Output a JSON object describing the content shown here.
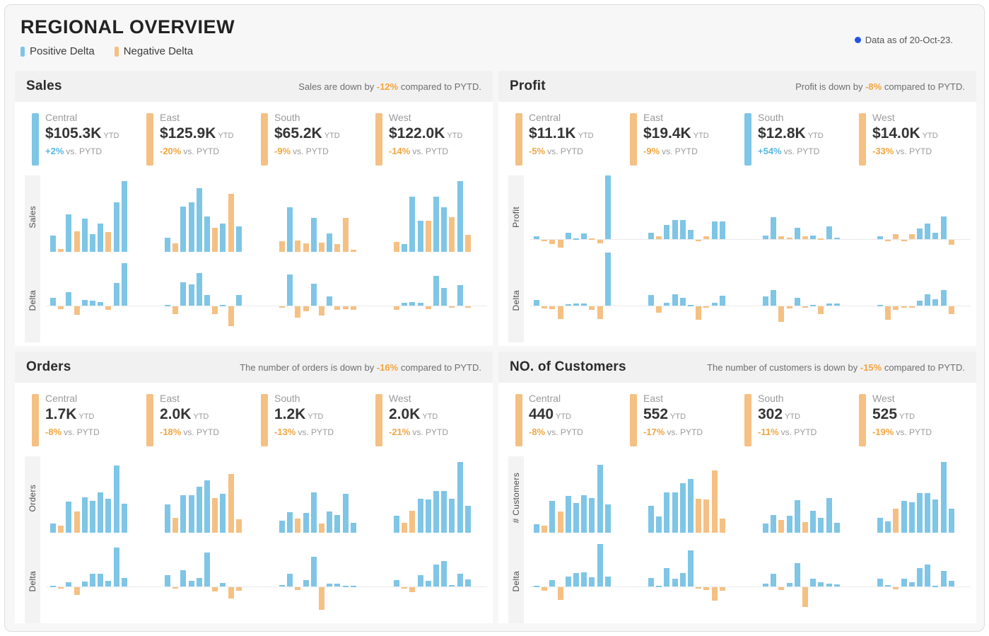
{
  "header": {
    "title": "REGIONAL OVERVIEW",
    "legend": [
      {
        "label": "Positive Delta",
        "color": "#7EC5E6"
      },
      {
        "label": "Negative Delta",
        "color": "#F5C083"
      }
    ],
    "as_of": "Data as of 20-Oct-23."
  },
  "colors": {
    "positive_bar": "#7EC5E6",
    "negative_bar": "#F5C083",
    "positive_text": "#58B7E4",
    "negative_text": "#F2A53F",
    "as_of_dot": "#2452E8"
  },
  "panels": [
    {
      "id": "sales",
      "title": "Sales",
      "subtitle": {
        "prefix": "Sales are down by ",
        "highlight": "-12%",
        "suffix": " compared to PYTD."
      },
      "value_axis_label": "Sales",
      "delta_axis_label": "Delta",
      "kpis": [
        {
          "region": "Central",
          "value": "$105.3K",
          "ytd_label": "YTD",
          "delta": "+2%",
          "delta_positive": true,
          "vs_label": "vs. PYTD"
        },
        {
          "region": "East",
          "value": "$125.9K",
          "ytd_label": "YTD",
          "delta": "-20%",
          "delta_positive": false,
          "vs_label": "vs. PYTD"
        },
        {
          "region": "South",
          "value": "$65.2K",
          "ytd_label": "YTD",
          "delta": "-9%",
          "delta_positive": false,
          "vs_label": "vs. PYTD"
        },
        {
          "region": "West",
          "value": "$122.0K",
          "ytd_label": "YTD",
          "delta": "-14%",
          "delta_positive": false,
          "vs_label": "vs. PYTD"
        }
      ]
    },
    {
      "id": "profit",
      "title": "Profit",
      "subtitle": {
        "prefix": "Profit is down by ",
        "highlight": "-8%",
        "suffix": " compared to PYTD."
      },
      "value_axis_label": "Profit",
      "delta_axis_label": "Delta",
      "kpis": [
        {
          "region": "Central",
          "value": "$11.1K",
          "ytd_label": "YTD",
          "delta": "-5%",
          "delta_positive": false,
          "vs_label": "vs. PYTD"
        },
        {
          "region": "East",
          "value": "$19.4K",
          "ytd_label": "YTD",
          "delta": "-9%",
          "delta_positive": false,
          "vs_label": "vs. PYTD"
        },
        {
          "region": "South",
          "value": "$12.8K",
          "ytd_label": "YTD",
          "delta": "+54%",
          "delta_positive": true,
          "vs_label": "vs. PYTD"
        },
        {
          "region": "West",
          "value": "$14.0K",
          "ytd_label": "YTD",
          "delta": "-33%",
          "delta_positive": false,
          "vs_label": "vs. PYTD"
        }
      ]
    },
    {
      "id": "orders",
      "title": "Orders",
      "subtitle": {
        "prefix": "The number of orders is down by ",
        "highlight": "-16%",
        "suffix": " compared to PYTD."
      },
      "value_axis_label": "Orders",
      "delta_axis_label": "Delta",
      "kpis": [
        {
          "region": "Central",
          "value": "1.7K",
          "ytd_label": "YTD",
          "delta": "-8%",
          "delta_positive": false,
          "vs_label": "vs. PYTD"
        },
        {
          "region": "East",
          "value": "2.0K",
          "ytd_label": "YTD",
          "delta": "-18%",
          "delta_positive": false,
          "vs_label": "vs. PYTD"
        },
        {
          "region": "South",
          "value": "1.2K",
          "ytd_label": "YTD",
          "delta": "-13%",
          "delta_positive": false,
          "vs_label": "vs. PYTD"
        },
        {
          "region": "West",
          "value": "2.0K",
          "ytd_label": "YTD",
          "delta": "-21%",
          "delta_positive": false,
          "vs_label": "vs. PYTD"
        }
      ]
    },
    {
      "id": "customers",
      "title": "NO. of Customers",
      "subtitle": {
        "prefix": "The number of customers is down by ",
        "highlight": "-15%",
        "suffix": " compared to PYTD."
      },
      "value_axis_label": "# Customers",
      "delta_axis_label": "Delta",
      "kpis": [
        {
          "region": "Central",
          "value": "440",
          "ytd_label": "YTD",
          "delta": "-8%",
          "delta_positive": false,
          "vs_label": "vs. PYTD"
        },
        {
          "region": "East",
          "value": "552",
          "ytd_label": "YTD",
          "delta": "-17%",
          "delta_positive": false,
          "vs_label": "vs. PYTD"
        },
        {
          "region": "South",
          "value": "302",
          "ytd_label": "YTD",
          "delta": "-11%",
          "delta_positive": false,
          "vs_label": "vs. PYTD"
        },
        {
          "region": "West",
          "value": "525",
          "ytd_label": "YTD",
          "delta": "-19%",
          "delta_positive": false,
          "vs_label": "vs. PYTD"
        }
      ]
    }
  ],
  "chart_data": [
    {
      "panel": "Sales",
      "type": "bar",
      "rows": [
        "Sales",
        "Delta"
      ],
      "x": "10 monthly periods Jan-Oct (x axis unlabeled)",
      "scale": "values are percent of region maximum; axes have no tick labels",
      "bar_color_rule": "blue when delta positive, orange when delta negative",
      "regions": [
        {
          "name": "Central",
          "values": [
            23,
            4,
            53,
            29,
            47,
            25,
            40,
            28,
            70,
            100
          ],
          "deltas": [
            12,
            -4,
            22,
            -14,
            9,
            8,
            6,
            -6,
            36,
            68
          ]
        },
        {
          "name": "East",
          "values": [
            20,
            12,
            64,
            70,
            90,
            50,
            34,
            40,
            82,
            36
          ],
          "deltas": [
            1,
            -12,
            38,
            34,
            52,
            17,
            -12,
            1,
            -32,
            17
          ]
        },
        {
          "name": "South",
          "values": [
            15,
            63,
            16,
            12,
            48,
            13,
            26,
            11,
            48,
            3
          ],
          "deltas": [
            -2,
            50,
            -18,
            -8,
            35,
            -15,
            15,
            -6,
            -5,
            -6
          ]
        },
        {
          "name": "West",
          "values": [
            14,
            11,
            78,
            44,
            44,
            78,
            63,
            49,
            100,
            24
          ],
          "deltas": [
            -6,
            4,
            6,
            4,
            -4,
            48,
            28,
            -2,
            33,
            -1
          ]
        }
      ]
    },
    {
      "panel": "Profit",
      "type": "bar",
      "rows": [
        "Profit",
        "Delta"
      ],
      "x": "10 monthly periods Jan-Oct (x axis unlabeled)",
      "scale": "values are percent of region maximum, can be negative; axes have no tick labels",
      "bar_color_rule": "blue when delta positive, orange when delta negative",
      "regions": [
        {
          "name": "Central",
          "values": [
            5,
            -1,
            -7,
            -12,
            10,
            1,
            9,
            1,
            -5,
            100
          ],
          "deltas": [
            9,
            -3,
            -4,
            -20,
            2,
            3,
            3,
            -6,
            -20,
            85
          ]
        },
        {
          "name": "East",
          "values": [
            10,
            5,
            22,
            30,
            30,
            15,
            -2,
            5,
            28,
            28
          ],
          "deltas": [
            17,
            -10,
            5,
            18,
            13,
            1,
            -22,
            -1,
            4,
            16
          ]
        },
        {
          "name": "South",
          "values": [
            6,
            35,
            5,
            2,
            18,
            5,
            6,
            1,
            20,
            2
          ],
          "deltas": [
            15,
            25,
            -25,
            -3,
            12,
            -2,
            1,
            -12,
            3,
            3
          ]
        },
        {
          "name": "West",
          "values": [
            5,
            -2,
            8,
            -2,
            8,
            17,
            24,
            10,
            36,
            -8
          ],
          "deltas": [
            1,
            -22,
            -6,
            -1,
            -2,
            8,
            18,
            10,
            25,
            -12
          ]
        }
      ]
    },
    {
      "panel": "Orders",
      "type": "bar",
      "rows": [
        "Orders",
        "Delta"
      ],
      "x": "10 monthly periods Jan-Oct (x axis unlabeled)",
      "scale": "values are percent of region maximum; axes have no tick labels",
      "bar_color_rule": "blue when delta positive, orange when delta negative",
      "regions": [
        {
          "name": "Central",
          "values": [
            13,
            10,
            44,
            30,
            50,
            45,
            57,
            48,
            95,
            41
          ],
          "deltas": [
            1,
            -2,
            7,
            -12,
            8,
            21,
            21,
            9,
            62,
            14
          ]
        },
        {
          "name": "East",
          "values": [
            40,
            21,
            53,
            53,
            65,
            74,
            49,
            55,
            83,
            19
          ],
          "deltas": [
            18,
            -1,
            26,
            9,
            14,
            55,
            -7,
            6,
            -18,
            -6
          ]
        },
        {
          "name": "South",
          "values": [
            17,
            29,
            20,
            28,
            57,
            13,
            30,
            25,
            55,
            14
          ],
          "deltas": [
            2,
            21,
            -5,
            10,
            48,
            -36,
            4,
            5,
            1,
            1
          ]
        },
        {
          "name": "West",
          "values": [
            24,
            14,
            31,
            48,
            47,
            59,
            59,
            48,
            100,
            38
          ],
          "deltas": [
            10,
            -1,
            -8,
            18,
            9,
            35,
            41,
            2,
            21,
            11
          ]
        }
      ]
    },
    {
      "panel": "NO. of Customers",
      "type": "bar",
      "rows": [
        "# Customers",
        "Delta"
      ],
      "x": "10 monthly periods Jan-Oct (x axis unlabeled)",
      "scale": "values are percent of region maximum; axes have no tick labels",
      "bar_color_rule": "blue when delta positive, orange when delta negative",
      "regions": [
        {
          "name": "Central",
          "values": [
            12,
            10,
            45,
            30,
            52,
            42,
            53,
            49,
            96,
            40
          ],
          "deltas": [
            1,
            -6,
            10,
            -20,
            16,
            22,
            23,
            15,
            68,
            16
          ]
        },
        {
          "name": "East",
          "values": [
            38,
            23,
            57,
            57,
            70,
            76,
            48,
            47,
            88,
            20
          ],
          "deltas": [
            14,
            1,
            29,
            12,
            22,
            58,
            -2,
            -4,
            -22,
            -6
          ]
        },
        {
          "name": "South",
          "values": [
            13,
            25,
            18,
            24,
            46,
            15,
            31,
            21,
            49,
            14
          ],
          "deltas": [
            4,
            21,
            -4,
            6,
            38,
            -32,
            13,
            7,
            4,
            3
          ]
        },
        {
          "name": "West",
          "values": [
            21,
            16,
            34,
            45,
            43,
            56,
            56,
            47,
            100,
            34
          ],
          "deltas": [
            12,
            2,
            -3,
            12,
            7,
            29,
            35,
            1,
            25,
            9
          ]
        }
      ]
    }
  ]
}
